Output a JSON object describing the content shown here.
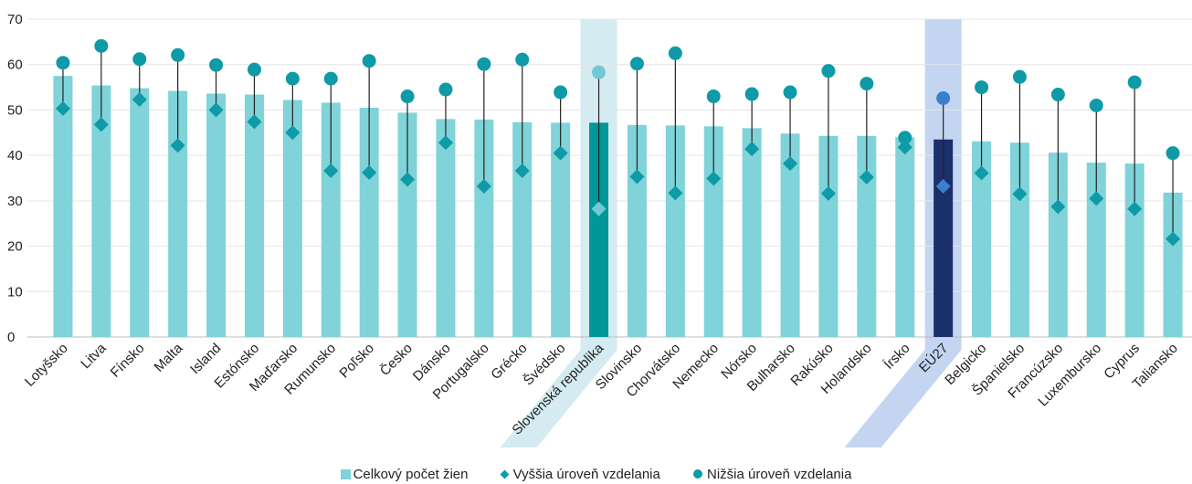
{
  "chart_data": {
    "type": "bar",
    "categories": [
      "Lotyšsko",
      "Litva",
      "Fínsko",
      "Malta",
      "Island",
      "Estónsko",
      "Maďarsko",
      "Rumunsko",
      "Poľsko",
      "Česko",
      "Dánsko",
      "Portugalsko",
      "Grécko",
      "Švédsko",
      "Slovenská republika",
      "Slovinsko",
      "Chorvátsko",
      "Nemecko",
      "Nórsko",
      "Bulharsko",
      "Rakúsko",
      "Holandsko",
      "Írsko",
      "EÚ27",
      "Belgicko",
      "Španielsko",
      "Francúzsko",
      "Luxembursko",
      "Cyprus",
      "Taliansko"
    ],
    "series": [
      {
        "name": "Celkový počet žien",
        "kind": "bar",
        "values": [
          57.5,
          55.4,
          54.8,
          54.2,
          53.6,
          53.4,
          52.2,
          51.6,
          50.5,
          49.4,
          48.0,
          47.9,
          47.3,
          47.2,
          47.2,
          46.7,
          46.6,
          46.4,
          46.0,
          44.8,
          44.3,
          44.3,
          44.0,
          43.5,
          43.1,
          42.8,
          40.6,
          38.4,
          38.2,
          31.8
        ]
      },
      {
        "name": "Vyššia úroveň vzdelania",
        "kind": "diamond",
        "values": [
          50.3,
          46.8,
          52.3,
          42.2,
          50.0,
          47.4,
          45.0,
          36.6,
          36.2,
          34.7,
          42.8,
          33.2,
          36.6,
          40.5,
          28.2,
          35.3,
          31.7,
          34.9,
          41.4,
          38.2,
          31.6,
          35.2,
          41.8,
          33.2,
          36.1,
          31.5,
          28.7,
          30.5,
          28.2,
          21.6
        ]
      },
      {
        "name": "Nižšia úroveň vzdelania",
        "kind": "dot",
        "values": [
          60.4,
          64.1,
          61.2,
          62.1,
          59.9,
          58.9,
          56.9,
          56.9,
          60.8,
          53.0,
          54.5,
          60.1,
          61.1,
          53.9,
          58.3,
          60.2,
          62.5,
          53.0,
          53.5,
          53.9,
          58.6,
          55.8,
          43.9,
          52.6,
          55.0,
          57.3,
          53.4,
          51.0,
          56.1,
          40.5
        ]
      }
    ],
    "ylim": [
      0,
      70
    ],
    "yticks": [
      0,
      10,
      20,
      30,
      40,
      50,
      60,
      70
    ],
    "xlabel": "",
    "ylabel": "",
    "title": "",
    "grid": true,
    "legend_position": "bottom",
    "highlighted": [
      "Slovenská republika",
      "EÚ27"
    ],
    "colors": {
      "bar": "#7fd3d9",
      "marker": "#0e9aa7",
      "sk_bar": "#00979a",
      "sk_marker": "#72c9d1",
      "eu_bar": "#1b2f6a",
      "eu_marker": "#3b7fcc",
      "sk_band": "#cde9ee",
      "eu_band": "#bcd0f0",
      "grid": "#e6e6e6",
      "stem": "#222222"
    }
  },
  "legend": {
    "total": "Celkový počet žien",
    "higher": "Vyššia úroveň vzdelania",
    "lower": "Nižšia úroveň vzdelania"
  }
}
